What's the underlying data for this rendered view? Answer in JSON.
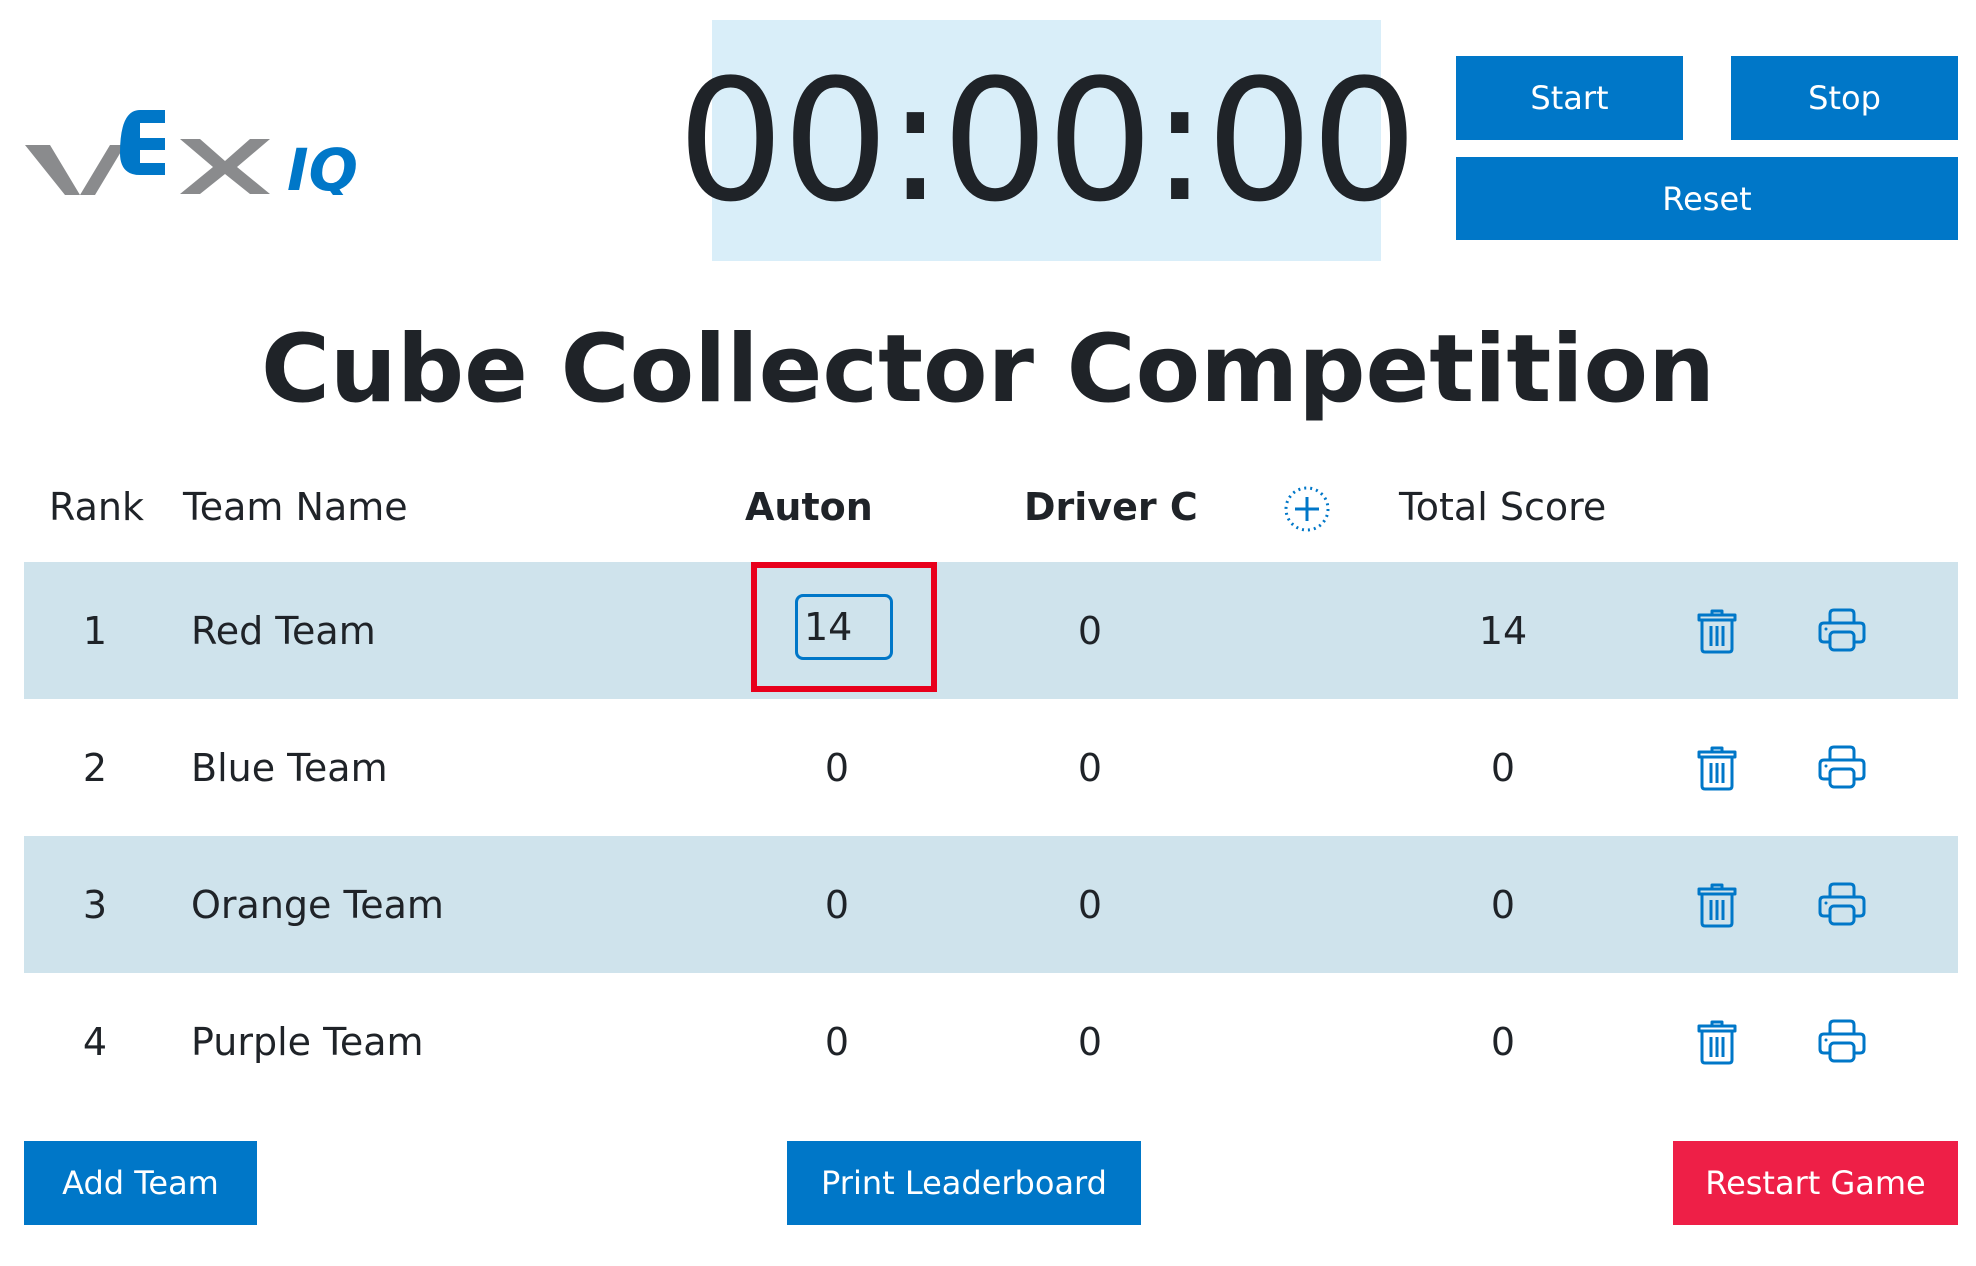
{
  "logo": {
    "text": "VEX IQ",
    "colors": {
      "gray": "#8a8b8d",
      "blue": "#0077c8"
    }
  },
  "timer": {
    "value": "00:00:00"
  },
  "controls": {
    "start": "Start",
    "stop": "Stop",
    "reset": "Reset"
  },
  "title": "Cube Collector Competition",
  "table": {
    "headers": {
      "rank": "Rank",
      "team": "Team Name",
      "auton": "Auton",
      "driver": "Driver C",
      "total": "Total Score"
    },
    "rows": [
      {
        "rank": "1",
        "team": "Red Team",
        "auton": "14",
        "driver": "0",
        "total": "14",
        "editing": true
      },
      {
        "rank": "2",
        "team": "Blue Team",
        "auton": "0",
        "driver": "0",
        "total": "0"
      },
      {
        "rank": "3",
        "team": "Orange Team",
        "auton": "0",
        "driver": "0",
        "total": "0"
      },
      {
        "rank": "4",
        "team": "Purple Team",
        "auton": "0",
        "driver": "0",
        "total": "0"
      }
    ]
  },
  "footer": {
    "add_team": "Add Team",
    "print_leaderboard": "Print Leaderboard",
    "restart": "Restart Game"
  },
  "colors": {
    "accent": "#0077c8",
    "row_alt": "#cfe3ec",
    "timer_bg": "#d9eef9",
    "restart": "#ee1f47",
    "highlight": "#e8001c"
  }
}
